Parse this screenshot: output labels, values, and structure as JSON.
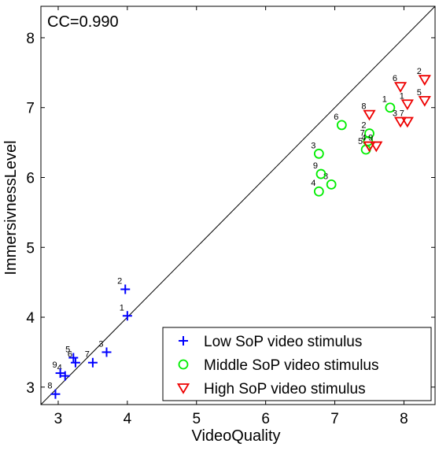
{
  "chart_data": {
    "type": "scatter",
    "annotation": "CC=0.990",
    "xlabel": "VideoQuality",
    "ylabel": "ImmersivnessLevel",
    "xlim": [
      2.75,
      8.45
    ],
    "ylim": [
      2.75,
      8.45
    ],
    "xticks": [
      3,
      4,
      5,
      6,
      7,
      8
    ],
    "yticks": [
      3,
      4,
      5,
      6,
      7,
      8
    ],
    "reference_line": "y = x",
    "legend_position": "bottom-right",
    "grid": false,
    "series": [
      {
        "name": "Low SoP video stimulus",
        "marker": "plus",
        "color": "#0000ff",
        "points": [
          {
            "label": "1",
            "x": 4.0,
            "y": 4.02
          },
          {
            "label": "2",
            "x": 3.97,
            "y": 4.4
          },
          {
            "label": "3",
            "x": 3.7,
            "y": 3.5
          },
          {
            "label": "4",
            "x": 3.1,
            "y": 3.16
          },
          {
            "label": "5",
            "x": 3.22,
            "y": 3.42
          },
          {
            "label": "6",
            "x": 3.25,
            "y": 3.35
          },
          {
            "label": "7",
            "x": 3.5,
            "y": 3.35
          },
          {
            "label": "8",
            "x": 2.96,
            "y": 2.9
          },
          {
            "label": "9",
            "x": 3.03,
            "y": 3.2
          }
        ]
      },
      {
        "name": "Middle SoP video stimulus",
        "marker": "circle",
        "color": "#00ee00",
        "points": [
          {
            "label": "1",
            "x": 7.8,
            "y": 7.0
          },
          {
            "label": "2",
            "x": 7.5,
            "y": 6.63
          },
          {
            "label": "3",
            "x": 6.77,
            "y": 6.34
          },
          {
            "label": "4",
            "x": 6.77,
            "y": 5.8
          },
          {
            "label": "5",
            "x": 7.45,
            "y": 6.4
          },
          {
            "label": "6",
            "x": 7.1,
            "y": 6.75
          },
          {
            "label": "7",
            "x": 7.48,
            "y": 6.52
          },
          {
            "label": "8",
            "x": 6.95,
            "y": 5.9
          },
          {
            "label": "9",
            "x": 6.8,
            "y": 6.05
          }
        ]
      },
      {
        "name": "High SoP video stimulus",
        "marker": "triangle-down",
        "color": "#ee0000",
        "points": [
          {
            "label": "1",
            "x": 8.05,
            "y": 7.05
          },
          {
            "label": "2",
            "x": 8.3,
            "y": 7.4
          },
          {
            "label": "3",
            "x": 7.95,
            "y": 6.8
          },
          {
            "label": "4",
            "x": 7.5,
            "y": 6.45
          },
          {
            "label": "5",
            "x": 8.3,
            "y": 7.1
          },
          {
            "label": "6",
            "x": 7.95,
            "y": 7.3
          },
          {
            "label": "7",
            "x": 8.05,
            "y": 6.8
          },
          {
            "label": "8",
            "x": 7.5,
            "y": 6.9
          },
          {
            "label": "9",
            "x": 7.6,
            "y": 6.45
          }
        ]
      }
    ]
  }
}
